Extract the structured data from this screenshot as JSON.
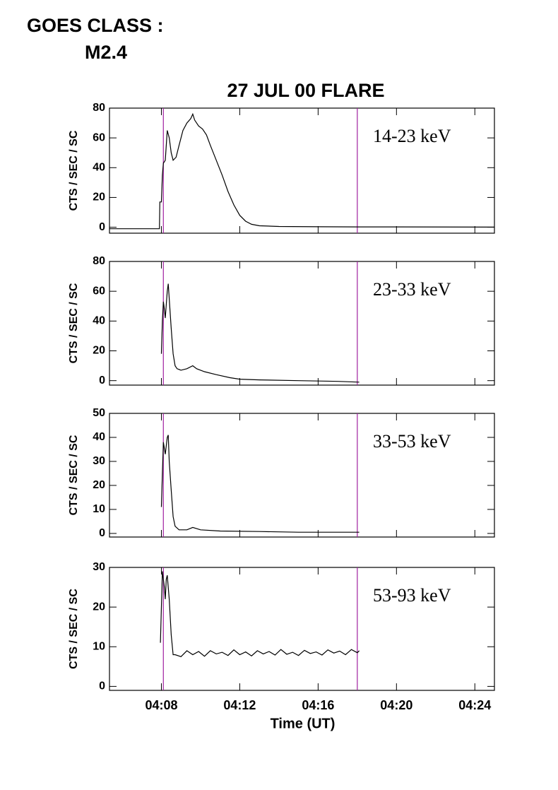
{
  "header": {
    "goes_class": "GOES CLASS :",
    "class_value": "M2.4"
  },
  "title": "27 JUL 00 FLARE",
  "chart_data": [
    {
      "type": "line",
      "annotation": "14-23 keV",
      "ylabel": "CTS / SEC / SC",
      "xlim": [
        5.35,
        25.0
      ],
      "ylim": [
        -4,
        80
      ],
      "yticks": [
        0,
        20,
        40,
        60,
        80
      ],
      "vlines": [
        8.1,
        18.0
      ],
      "vline_color": "#a020a0",
      "x": [
        5.35,
        7.9,
        7.92,
        8.0,
        8.05,
        8.1,
        8.2,
        8.3,
        8.4,
        8.5,
        8.6,
        8.75,
        8.9,
        9.1,
        9.3,
        9.5,
        9.6,
        9.7,
        9.9,
        10.1,
        10.3,
        10.5,
        10.8,
        11.1,
        11.4,
        11.7,
        12.0,
        12.3,
        12.6,
        13,
        14,
        16,
        18,
        20,
        25
      ],
      "series": [
        {
          "color": "#000000",
          "values": [
            -1,
            -1,
            17,
            17,
            35,
            43,
            45,
            65,
            60,
            50,
            45,
            47,
            55,
            65,
            70,
            73,
            76,
            72,
            68,
            66,
            62,
            55,
            45,
            35,
            24,
            15,
            8,
            4,
            2,
            1,
            0.5,
            0.3,
            0.2,
            0.2,
            0.1
          ]
        }
      ]
    },
    {
      "type": "line",
      "annotation": "23-33 keV",
      "ylabel": "CTS / SEC / SC",
      "xlim": [
        5.35,
        25.0
      ],
      "ylim": [
        -3,
        80
      ],
      "yticks": [
        0,
        20,
        40,
        60,
        80
      ],
      "vlines": [
        8.1,
        18.0
      ],
      "vline_color": "#a020a0",
      "x": [
        8.0,
        8.05,
        8.1,
        8.15,
        8.2,
        8.3,
        8.35,
        8.4,
        8.5,
        8.6,
        8.7,
        8.8,
        9,
        9.3,
        9.6,
        9.8,
        10.2,
        10.8,
        11.5,
        12,
        13,
        15,
        17,
        18.1
      ],
      "series": [
        {
          "color": "#000000",
          "values": [
            18,
            40,
            53,
            48,
            42,
            60,
            65,
            55,
            35,
            18,
            10,
            8,
            7,
            8,
            10,
            8,
            6,
            4,
            2,
            1,
            0.5,
            0,
            -0.5,
            -1
          ]
        }
      ]
    },
    {
      "type": "line",
      "annotation": "33-53 keV",
      "ylabel": "CTS / SEC / SC",
      "xlim": [
        5.35,
        25.0
      ],
      "ylim": [
        -1.5,
        50
      ],
      "yticks": [
        0,
        10,
        20,
        30,
        40,
        50
      ],
      "vlines": [
        8.1,
        18.0
      ],
      "vline_color": "#a020a0",
      "x": [
        8.0,
        8.05,
        8.1,
        8.2,
        8.3,
        8.35,
        8.4,
        8.5,
        8.6,
        8.7,
        8.9,
        9.3,
        9.6,
        10,
        11,
        13,
        15,
        18.1
      ],
      "series": [
        {
          "color": "#000000",
          "values": [
            11,
            25,
            38,
            33,
            40,
            41,
            30,
            18,
            7,
            3,
            1.5,
            1.5,
            2.5,
            1.5,
            1,
            0.8,
            0.5,
            0.5
          ]
        }
      ]
    },
    {
      "type": "line",
      "annotation": "53-93 keV",
      "ylabel": "CTS / SEC / SC",
      "xlabel": "Time (UT)",
      "xlim": [
        5.35,
        25.0
      ],
      "ylim": [
        -1,
        30
      ],
      "yticks": [
        0,
        10,
        20,
        30
      ],
      "xticks": [
        {
          "value": 8,
          "label": "04:08"
        },
        {
          "value": 12,
          "label": "04:12"
        },
        {
          "value": 16,
          "label": "04:16"
        },
        {
          "value": 20,
          "label": "04:20"
        },
        {
          "value": 24,
          "label": "04:24"
        }
      ],
      "vlines": [
        8.1,
        18.0
      ],
      "vline_color": "#a020a0",
      "x": [
        7.95,
        8.05,
        8.15,
        8.2,
        8.25,
        8.3,
        8.4,
        8.5,
        8.6,
        8.7,
        9.0,
        9.3,
        9.6,
        9.9,
        10.2,
        10.5,
        10.8,
        11.1,
        11.4,
        11.7,
        12.0,
        12.3,
        12.6,
        12.9,
        13.2,
        13.5,
        13.8,
        14.1,
        14.4,
        14.7,
        15.0,
        15.3,
        15.6,
        15.9,
        16.2,
        16.5,
        16.8,
        17.1,
        17.4,
        17.7,
        18.0,
        18.1
      ],
      "series": [
        {
          "color": "#000000",
          "values": [
            11,
            29,
            25,
            22,
            27,
            28,
            22,
            13,
            8,
            8,
            7.5,
            9,
            8,
            8.8,
            7.6,
            9,
            8.2,
            8.6,
            7.8,
            9.2,
            8,
            8.7,
            7.7,
            9,
            8.2,
            8.8,
            7.9,
            9.3,
            8.1,
            8.6,
            7.8,
            9.1,
            8.3,
            8.7,
            7.9,
            9.2,
            8.4,
            8.9,
            8,
            9.3,
            8.5,
            9
          ]
        }
      ]
    }
  ]
}
